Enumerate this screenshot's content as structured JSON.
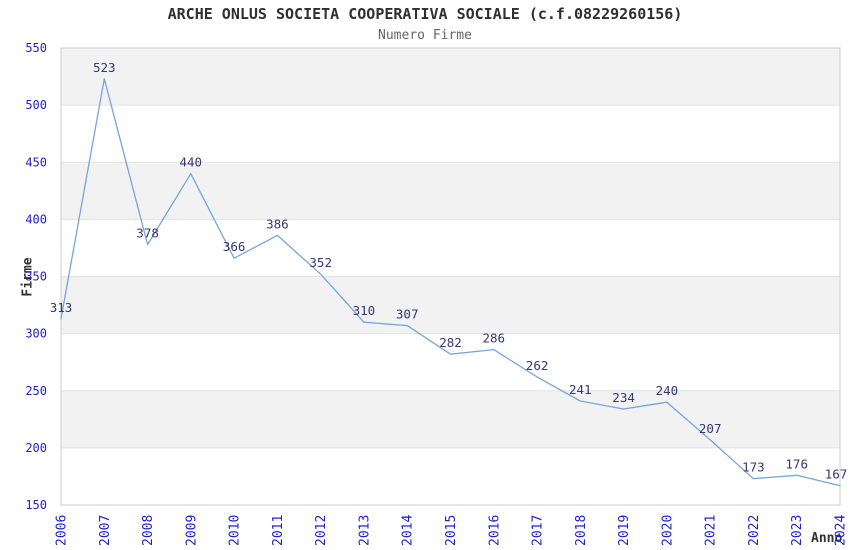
{
  "chart_data": {
    "type": "line",
    "title": "ARCHE ONLUS SOCIETA COOPERATIVA SOCIALE (c.f.08229260156)",
    "subtitle": "Numero Firme",
    "xlabel": "Anno",
    "ylabel": "Firme",
    "x": [
      "2006",
      "2007",
      "2008",
      "2009",
      "2010",
      "2011",
      "2012",
      "2013",
      "2014",
      "2015",
      "2016",
      "2017",
      "2018",
      "2019",
      "2020",
      "2021",
      "2022",
      "2023",
      "2024"
    ],
    "values": [
      313,
      523,
      378,
      440,
      366,
      386,
      352,
      310,
      307,
      282,
      286,
      262,
      241,
      234,
      240,
      207,
      173,
      176,
      167
    ],
    "ylim": [
      150,
      550
    ],
    "ytick_step": 50,
    "yticks": [
      150,
      200,
      250,
      300,
      350,
      400,
      450,
      500,
      550
    ],
    "grid": "horizontal gridlines with alternating shaded bands",
    "legend": "none",
    "point_labels_shown": true,
    "colors": {
      "line": "#74a6dc",
      "band": "#f2f2f2",
      "grid": "#e3e3e3",
      "border": "#cccccc",
      "tick_label": "#2222cc",
      "point_label": "#373773",
      "title": "#2f2f2f",
      "subtitle": "#666666",
      "axis_label": "#333333"
    }
  }
}
